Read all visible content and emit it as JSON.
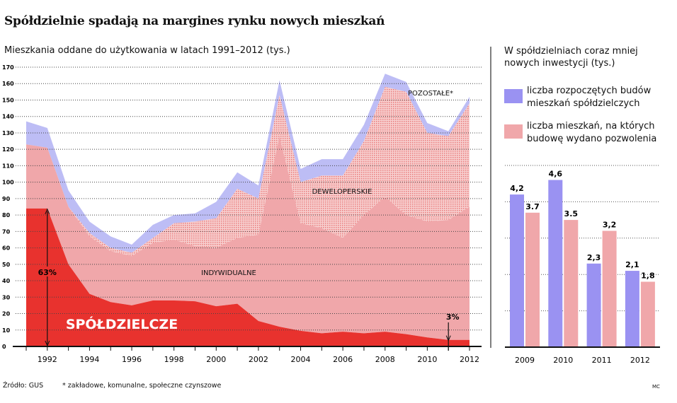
{
  "title": "Spółdzielnie spadają na margines rynku nowych mieszkań",
  "footer": {
    "source": "Źródło: GUS",
    "note": "* zakładowe, komunalne, społeczne czynszowe",
    "credit": "MC"
  },
  "colors": {
    "spoldzielcze": "#e8322e",
    "indywidualne": "#f0a7aa",
    "deweloperskie_dots": "#e55a5a",
    "pozostale": "#bdbdf5",
    "bar_blue": "#9a92f2",
    "bar_pink": "#f0a7aa"
  },
  "chart_data": [
    {
      "type": "area",
      "stacked": true,
      "title": "Mieszkania oddane do użytkowania w latach 1991–2012 (tys.)",
      "x": [
        1991,
        1992,
        1993,
        1994,
        1995,
        1996,
        1997,
        1998,
        1999,
        2000,
        2001,
        2002,
        2003,
        2004,
        2005,
        2006,
        2007,
        2008,
        2009,
        2010,
        2011,
        2012
      ],
      "xticks": [
        "1992",
        "1994",
        "1996",
        "1998",
        "2000",
        "2002",
        "2004",
        "2006",
        "2008",
        "2010",
        "2012"
      ],
      "yticks": [
        "0",
        "10",
        "20",
        "30",
        "40",
        "50",
        "60",
        "70",
        "80",
        "90",
        "100",
        "110",
        "120",
        "130",
        "140",
        "150",
        "160",
        "170"
      ],
      "ylim": [
        0,
        170
      ],
      "grid": true,
      "series": [
        {
          "name": "SPÓŁDZIELCZE",
          "values": [
            84,
            84,
            50,
            32,
            27,
            25,
            28,
            28,
            27.5,
            24.5,
            26,
            15.5,
            12,
            9.5,
            8,
            9,
            8,
            9,
            7.5,
            5.5,
            4,
            4
          ]
        },
        {
          "name": "INDYWIDUALNE",
          "values": [
            39,
            37,
            35,
            35,
            31,
            30,
            35,
            37,
            33.5,
            35.5,
            40,
            52.5,
            116,
            65.5,
            64,
            57,
            72,
            82,
            72.5,
            70.5,
            73,
            81
          ]
        },
        {
          "name": "DEWELOPERSKIE",
          "values": [
            0,
            0,
            0,
            2,
            2,
            2,
            3,
            10,
            15,
            18,
            30,
            22,
            25,
            25,
            32,
            38,
            45,
            67,
            75,
            54,
            51,
            63
          ]
        },
        {
          "name": "POZOSTAŁE*",
          "values": [
            14,
            12,
            10,
            7,
            7,
            5,
            8,
            5,
            5,
            10,
            10,
            8,
            9,
            8,
            10,
            10,
            10,
            8,
            6,
            6,
            3,
            4
          ]
        }
      ],
      "annotations": [
        {
          "label": "63%",
          "year": 1992
        },
        {
          "label": "3%",
          "year": 2011
        }
      ]
    },
    {
      "type": "bar",
      "title": "W spółdzielniach coraz mniej nowych inwestycji (tys.)",
      "categories": [
        "2009",
        "2010",
        "2011",
        "2012"
      ],
      "ylim": [
        0,
        5
      ],
      "grid": true,
      "legend": "top",
      "series": [
        {
          "name": "liczba rozpoczętych budów mieszkań spółdzielczych",
          "values": [
            4.2,
            4.6,
            2.3,
            2.1
          ],
          "labels": [
            "4,2",
            "4,6",
            "2,3",
            "2,1"
          ]
        },
        {
          "name": "liczba mieszkań, na których budowę wydano pozwolenia",
          "values": [
            3.7,
            3.5,
            3.2,
            1.8
          ],
          "labels": [
            "3.7",
            "3.5",
            "3,2",
            "1,8"
          ]
        }
      ]
    }
  ]
}
